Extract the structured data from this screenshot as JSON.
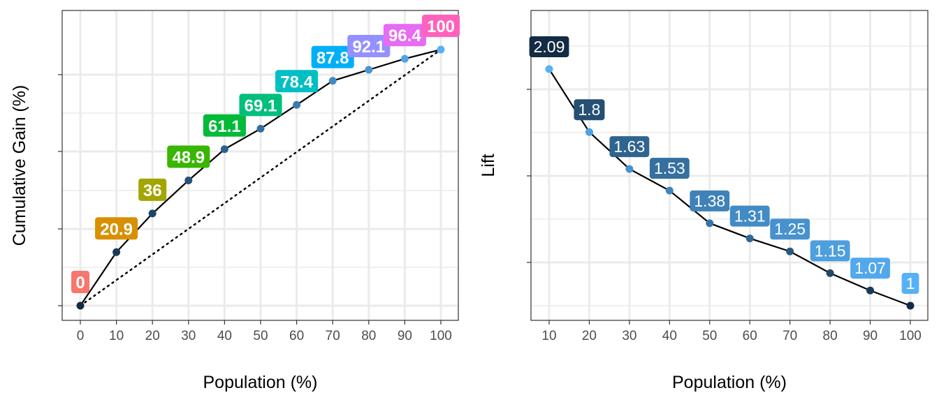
{
  "chart_data": [
    {
      "type": "line",
      "panel": "cumulative-gain",
      "xlabel": "Population (%)",
      "ylabel": "Cumulative Gain (%)",
      "xlim": [
        0,
        100
      ],
      "ylim": [
        0,
        100
      ],
      "x_ticks": [
        0,
        10,
        20,
        30,
        40,
        50,
        60,
        70,
        80,
        90,
        100
      ],
      "x_tick_labels": [
        "0",
        "10",
        "20",
        "30",
        "40",
        "50",
        "60",
        "70",
        "80",
        "90",
        "100"
      ],
      "y_ticks_shown": false,
      "grid": true,
      "x": [
        0,
        10,
        20,
        30,
        40,
        50,
        60,
        70,
        80,
        90,
        100
      ],
      "values": [
        0,
        20.9,
        36,
        48.9,
        61.1,
        69.1,
        78.4,
        87.8,
        92.1,
        96.4,
        100
      ],
      "data_labels": [
        "0",
        "20.9",
        "36",
        "48.9",
        "61.1",
        "69.1",
        "78.4",
        "87.8",
        "92.1",
        "96.4",
        "100"
      ],
      "label_colors": [
        "#F8766D",
        "#D89000",
        "#A3A500",
        "#39B600",
        "#00BA38",
        "#00BF7D",
        "#00BFC4",
        "#00B0F6",
        "#9590FF",
        "#E76BF3",
        "#FF62BC"
      ],
      "reference_line": {
        "style": "dotted",
        "from": [
          0,
          0
        ],
        "to": [
          100,
          100
        ]
      }
    },
    {
      "type": "line",
      "panel": "lift",
      "xlabel": "Population (%)",
      "ylabel": "Lift",
      "xlim": [
        10,
        100
      ],
      "x_ticks": [
        10,
        20,
        30,
        40,
        50,
        60,
        70,
        80,
        90,
        100
      ],
      "x_tick_labels": [
        "10",
        "20",
        "30",
        "40",
        "50",
        "60",
        "70",
        "80",
        "90",
        "100"
      ],
      "y_ticks_shown": false,
      "grid": true,
      "x": [
        10,
        20,
        30,
        40,
        50,
        60,
        70,
        80,
        90,
        100
      ],
      "values": [
        2.09,
        1.8,
        1.63,
        1.53,
        1.38,
        1.31,
        1.25,
        1.15,
        1.07,
        1
      ],
      "data_labels": [
        "2.09",
        "1.8",
        "1.63",
        "1.53",
        "1.38",
        "1.31",
        "1.25",
        "1.15",
        "1.07",
        "1"
      ],
      "color_scale": {
        "low": "#132B43",
        "high": "#56B1F7"
      }
    }
  ]
}
